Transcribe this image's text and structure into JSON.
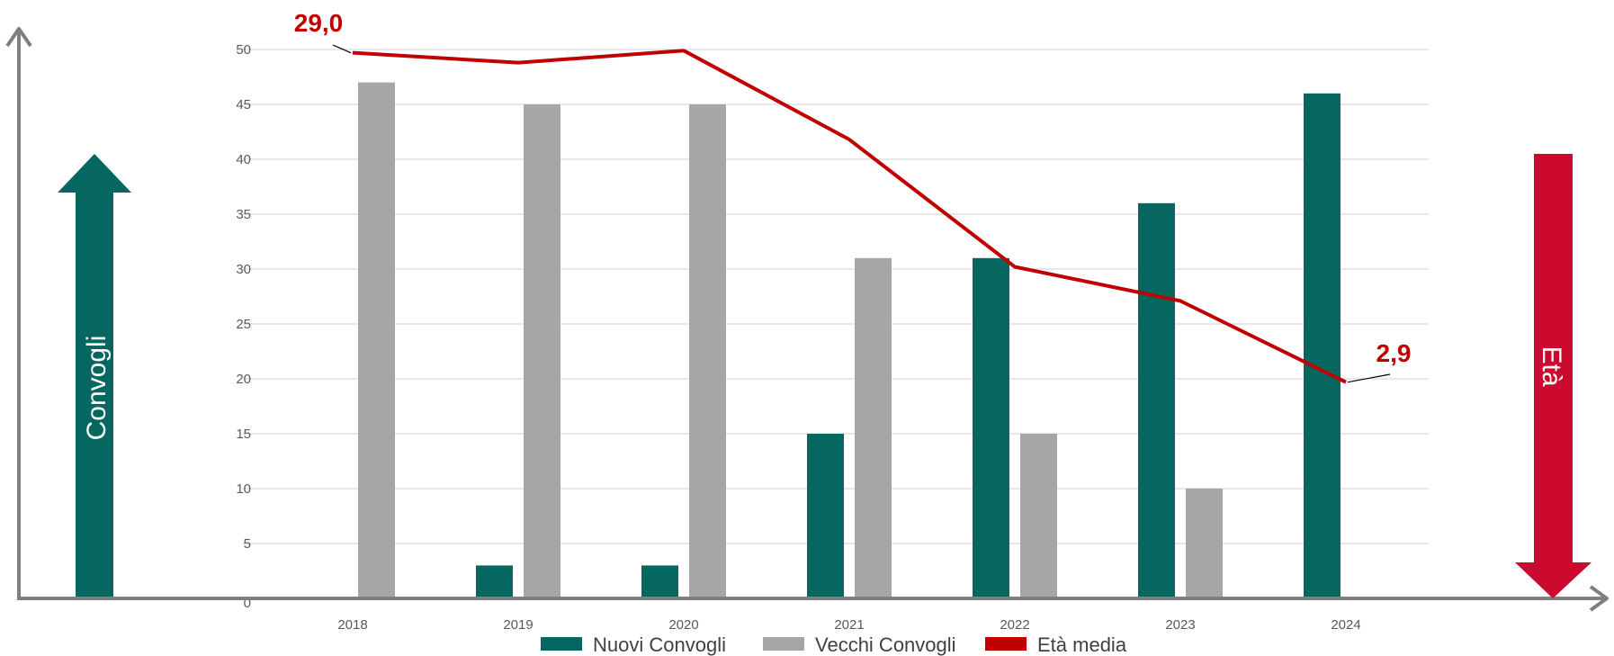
{
  "colors": {
    "new": "#066660",
    "old": "#a6a6a6",
    "age": "#c00000",
    "eta_arrow": "#cc0a2f",
    "axis": "#7f7f7f",
    "grid": "#d9d9d9"
  },
  "left_arrow_label": "Convogli",
  "right_arrow_label": "Età",
  "icons": {
    "up": "up-arrow-icon",
    "down": "down-arrow-icon"
  },
  "chart_data": {
    "type": "bar",
    "categories": [
      "2018",
      "2019",
      "2020",
      "2021",
      "2022",
      "2023",
      "2024"
    ],
    "series": [
      {
        "name": "Nuovi Convogli",
        "type": "bar",
        "values": [
          0,
          3,
          3,
          15,
          31,
          36,
          46
        ]
      },
      {
        "name": "Vecchi Convogli",
        "type": "bar",
        "values": [
          47,
          45,
          45,
          31,
          15,
          10,
          0
        ]
      },
      {
        "name": "Età media",
        "type": "line",
        "values": [
          49.7,
          48.8,
          49.9,
          41.8,
          30.2,
          27.1,
          19.7
        ]
      }
    ],
    "ylim": [
      0,
      50
    ],
    "yticks": [
      "0",
      "5",
      "10",
      "15",
      "20",
      "25",
      "30",
      "35",
      "40",
      "45",
      "50"
    ],
    "grid": true,
    "legend_position": "bottom",
    "annotations": {
      "start": "29,0",
      "end": "2,9"
    }
  }
}
